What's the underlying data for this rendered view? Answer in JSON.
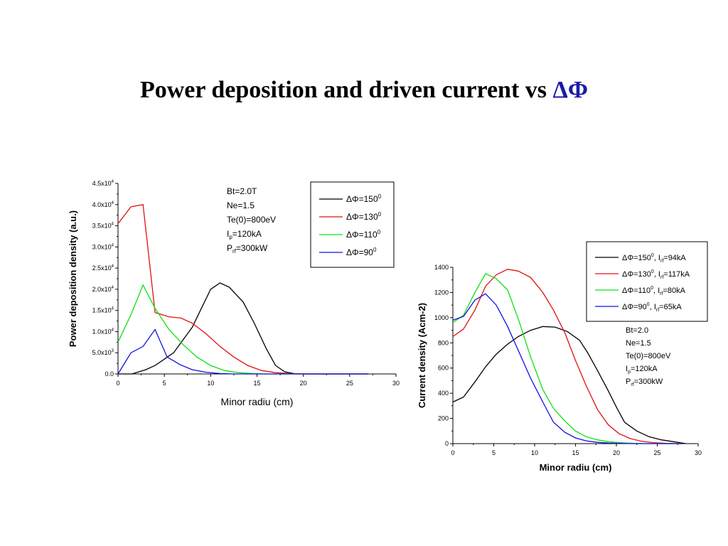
{
  "slide": {
    "title_text": "Power deposition and driven current vs ",
    "title_symbol": "ΔΦ"
  },
  "chart_data": [
    {
      "type": "line",
      "title": "",
      "xlabel": "Minor radiu (cm)",
      "ylabel": "Power deposition density (a.u.)",
      "xlim": [
        0,
        30
      ],
      "ylim": [
        0,
        45000
      ],
      "xticks": [
        0,
        5,
        10,
        15,
        20,
        25,
        30
      ],
      "xtick_labels": [
        "0",
        "5",
        "10",
        "15",
        "20",
        "25",
        "30"
      ],
      "yticks": [
        0,
        5000,
        10000,
        15000,
        20000,
        25000,
        30000,
        35000,
        40000,
        45000
      ],
      "ytick_mantissas": [
        "0.0",
        "5.0x10",
        "1.0x10",
        "1.5x10",
        "2.0x10",
        "2.5x10",
        "3.0x10",
        "3.5x10",
        "4.0x10",
        "4.5x10"
      ],
      "ytick_exps": [
        "",
        "3",
        "4",
        "4",
        "4",
        "4",
        "4",
        "4",
        "4",
        "4"
      ],
      "legend": "top-right",
      "grid": false,
      "annotation": [
        {
          "main": "Bt=2.0T",
          "sub": "",
          "rest": ""
        },
        {
          "main": "Ne=1.5",
          "sub": "",
          "rest": ""
        },
        {
          "main": "Te(0)=800eV",
          "sub": "",
          "rest": ""
        },
        {
          "main": "I",
          "sub": "p",
          "rest": "=120kA"
        },
        {
          "main": "P",
          "sub": "rf",
          "rest": "=300kW"
        }
      ],
      "series": [
        {
          "name": "ΔΦ=150",
          "name_sup": "0",
          "name_rest": "",
          "name_sub": "",
          "name_tail": "",
          "color": "#000000",
          "x": [
            0,
            1.5,
            3,
            4,
            5,
            6,
            7,
            8,
            9,
            10,
            11,
            12,
            13.5,
            14.7,
            16,
            17,
            18,
            19,
            20,
            21,
            22,
            23,
            25,
            27
          ],
          "y": [
            0,
            0,
            1000,
            2000,
            3500,
            5000,
            8000,
            11000,
            15500,
            20000,
            21500,
            20500,
            17000,
            12000,
            6000,
            2000,
            500,
            100,
            0,
            0,
            0,
            0,
            0,
            0
          ]
        },
        {
          "name": "ΔΦ=130",
          "name_sup": "0",
          "name_rest": "",
          "name_sub": "",
          "name_tail": "",
          "color": "#e01010",
          "x": [
            0,
            1.4,
            2.7,
            4,
            5.5,
            6.8,
            8,
            9.5,
            11,
            12.5,
            14,
            15.5,
            17,
            18.5,
            20,
            22,
            25,
            27
          ],
          "y": [
            35500,
            39500,
            40000,
            14500,
            13500,
            13200,
            12000,
            9500,
            6500,
            4000,
            2000,
            800,
            300,
            100,
            0,
            0,
            0,
            0
          ]
        },
        {
          "name": "ΔΦ=110",
          "name_sup": "0",
          "name_rest": "",
          "name_sub": "",
          "name_tail": "",
          "color": "#10e010",
          "x": [
            0,
            1.4,
            2.7,
            4,
            5.5,
            7,
            8.5,
            10,
            11.5,
            13,
            14.5,
            16,
            18,
            20,
            22,
            25,
            27
          ],
          "y": [
            7500,
            14000,
            21000,
            15500,
            10500,
            7000,
            4000,
            2000,
            800,
            300,
            100,
            0,
            0,
            0,
            0,
            0,
            0
          ]
        },
        {
          "name": "ΔΦ=90",
          "name_sup": "0",
          "name_rest": "",
          "name_sub": "",
          "name_tail": "",
          "color": "#1010e0",
          "x": [
            0,
            1.4,
            2.7,
            4,
            5.3,
            6.7,
            8,
            9.5,
            11,
            12.5,
            14,
            16,
            18,
            20,
            22,
            25,
            27
          ],
          "y": [
            0,
            5000,
            6500,
            10500,
            4000,
            2200,
            1000,
            400,
            100,
            0,
            0,
            0,
            0,
            0,
            0,
            0,
            0
          ]
        }
      ]
    },
    {
      "type": "line",
      "title": "",
      "xlabel": "Minor radiu (cm)",
      "ylabel": "Current density (Acm-2)",
      "xlim": [
        0,
        30
      ],
      "ylim": [
        0,
        1400
      ],
      "xticks": [
        0,
        5,
        10,
        15,
        20,
        25,
        30
      ],
      "xtick_labels": [
        "0",
        "5",
        "10",
        "15",
        "20",
        "25",
        "30"
      ],
      "yticks": [
        0,
        200,
        400,
        600,
        800,
        1000,
        1200,
        1400
      ],
      "ytick_mantissas": [
        "0",
        "200",
        "400",
        "600",
        "800",
        "1000",
        "1200",
        "1400"
      ],
      "ytick_exps": [
        "",
        "",
        "",
        "",
        "",
        "",
        "",
        ""
      ],
      "legend": "top-right",
      "grid": false,
      "annotation": [
        {
          "main": "Bt=2.0",
          "sub": "",
          "rest": ""
        },
        {
          "main": "Ne=1.5",
          "sub": "",
          "rest": ""
        },
        {
          "main": "Te(0)=800eV",
          "sub": "",
          "rest": ""
        },
        {
          "main": "I",
          "sub": "p",
          "rest": "=120kA"
        },
        {
          "main": "P",
          "sub": "rf",
          "rest": "=300kW"
        }
      ],
      "series": [
        {
          "name": "ΔΦ=150",
          "name_sup": "0",
          "name_rest": ", I",
          "name_sub": "rf",
          "name_tail": "=94kA",
          "color": "#000000",
          "x": [
            0,
            1.3,
            2.7,
            4,
            5.3,
            6.7,
            8,
            9.5,
            11,
            12.5,
            14,
            15.5,
            16.5,
            17.7,
            19,
            20,
            21,
            22.5,
            24,
            25.5,
            27,
            28.5
          ],
          "y": [
            330,
            370,
            490,
            610,
            710,
            790,
            850,
            900,
            930,
            925,
            890,
            820,
            720,
            580,
            420,
            290,
            170,
            100,
            55,
            30,
            15,
            0
          ]
        },
        {
          "name": "ΔΦ=130",
          "name_sup": "0",
          "name_rest": ", I",
          "name_sub": "rf",
          "name_tail": "=117kA",
          "color": "#e01010",
          "x": [
            0,
            1.3,
            2.7,
            4,
            5.3,
            6.7,
            8,
            9.5,
            11,
            12.3,
            13.7,
            15,
            16.3,
            17.7,
            19,
            20.3,
            21.7,
            23,
            24.5,
            26,
            28
          ],
          "y": [
            850,
            910,
            1060,
            1250,
            1340,
            1385,
            1370,
            1320,
            1200,
            1060,
            880,
            660,
            460,
            270,
            150,
            80,
            40,
            20,
            8,
            3,
            0
          ]
        },
        {
          "name": "ΔΦ=110",
          "name_sup": "0",
          "name_rest": ", I",
          "name_sub": "rf",
          "name_tail": "=80kA",
          "color": "#10e010",
          "x": [
            0,
            1.3,
            2.7,
            4,
            5.3,
            6.7,
            8,
            9.5,
            11,
            12.3,
            13.7,
            15,
            16.3,
            17.7,
            19,
            20.5,
            22,
            24,
            26,
            28
          ],
          "y": [
            960,
            1020,
            1200,
            1350,
            1310,
            1220,
            990,
            690,
            430,
            280,
            180,
            100,
            55,
            30,
            15,
            8,
            3,
            0,
            0,
            0
          ]
        },
        {
          "name": "ΔΦ=90",
          "name_sup": "0",
          "name_rest": ", I",
          "name_sub": "rf",
          "name_tail": "=65kA",
          "color": "#1010e0",
          "x": [
            0,
            1.3,
            2.7,
            4,
            5.3,
            6.7,
            8,
            9.5,
            11,
            12.3,
            13.7,
            15,
            16.3,
            17.7,
            19,
            20.5,
            22,
            24,
            26,
            28
          ],
          "y": [
            980,
            1010,
            1140,
            1190,
            1100,
            930,
            740,
            520,
            330,
            170,
            90,
            45,
            22,
            10,
            5,
            2,
            0,
            0,
            0,
            0
          ]
        }
      ]
    }
  ]
}
